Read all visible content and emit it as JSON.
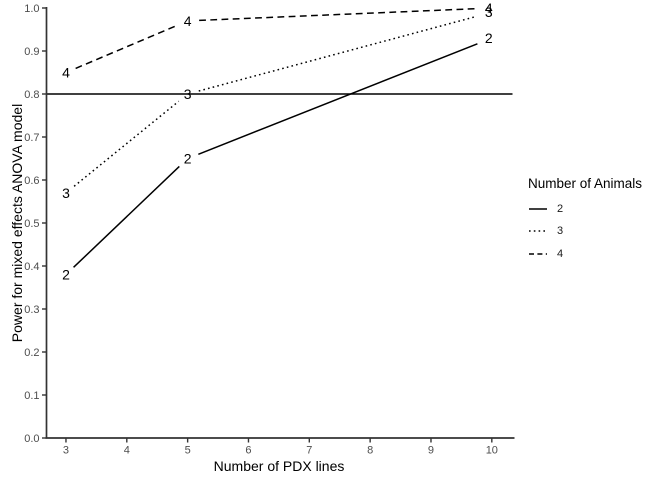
{
  "figure": {
    "background": "#ffffff",
    "line_color": "#000000",
    "axis_color": "#333333",
    "tick_label_color": "#4d4d4d"
  },
  "chart_data": {
    "type": "line",
    "title": "",
    "xlabel": "Number of PDX lines",
    "ylabel": "Power for mixed effects ANOVA model",
    "x": [
      3,
      5,
      10
    ],
    "series": [
      {
        "name": "2",
        "animals": 2,
        "linestyle": "solid",
        "values": [
          0.38,
          0.65,
          0.93
        ]
      },
      {
        "name": "3",
        "animals": 3,
        "linestyle": "dotted",
        "values": [
          0.57,
          0.8,
          0.99
        ]
      },
      {
        "name": "4",
        "animals": 4,
        "linestyle": "dashed",
        "values": [
          0.85,
          0.97,
          1.0
        ]
      }
    ],
    "reference_line_y": 0.8,
    "x_ticks": [
      "3",
      "4",
      "5",
      "6",
      "7",
      "8",
      "9",
      "10"
    ],
    "y_ticks": [
      "0.0",
      "0.1",
      "0.2",
      "0.3",
      "0.4",
      "0.5",
      "0.6",
      "0.7",
      "0.8",
      "0.9",
      "1.0"
    ],
    "xlim": [
      2.68,
      10.34
    ],
    "ylim": [
      0.0,
      1.0
    ],
    "grid": false,
    "direct_labels": true,
    "legend": {
      "title": "Number of Animals",
      "position": "right",
      "entries": [
        {
          "label": "2",
          "linestyle": "solid"
        },
        {
          "label": "3",
          "linestyle": "dotted"
        },
        {
          "label": "4",
          "linestyle": "dashed"
        }
      ]
    }
  }
}
